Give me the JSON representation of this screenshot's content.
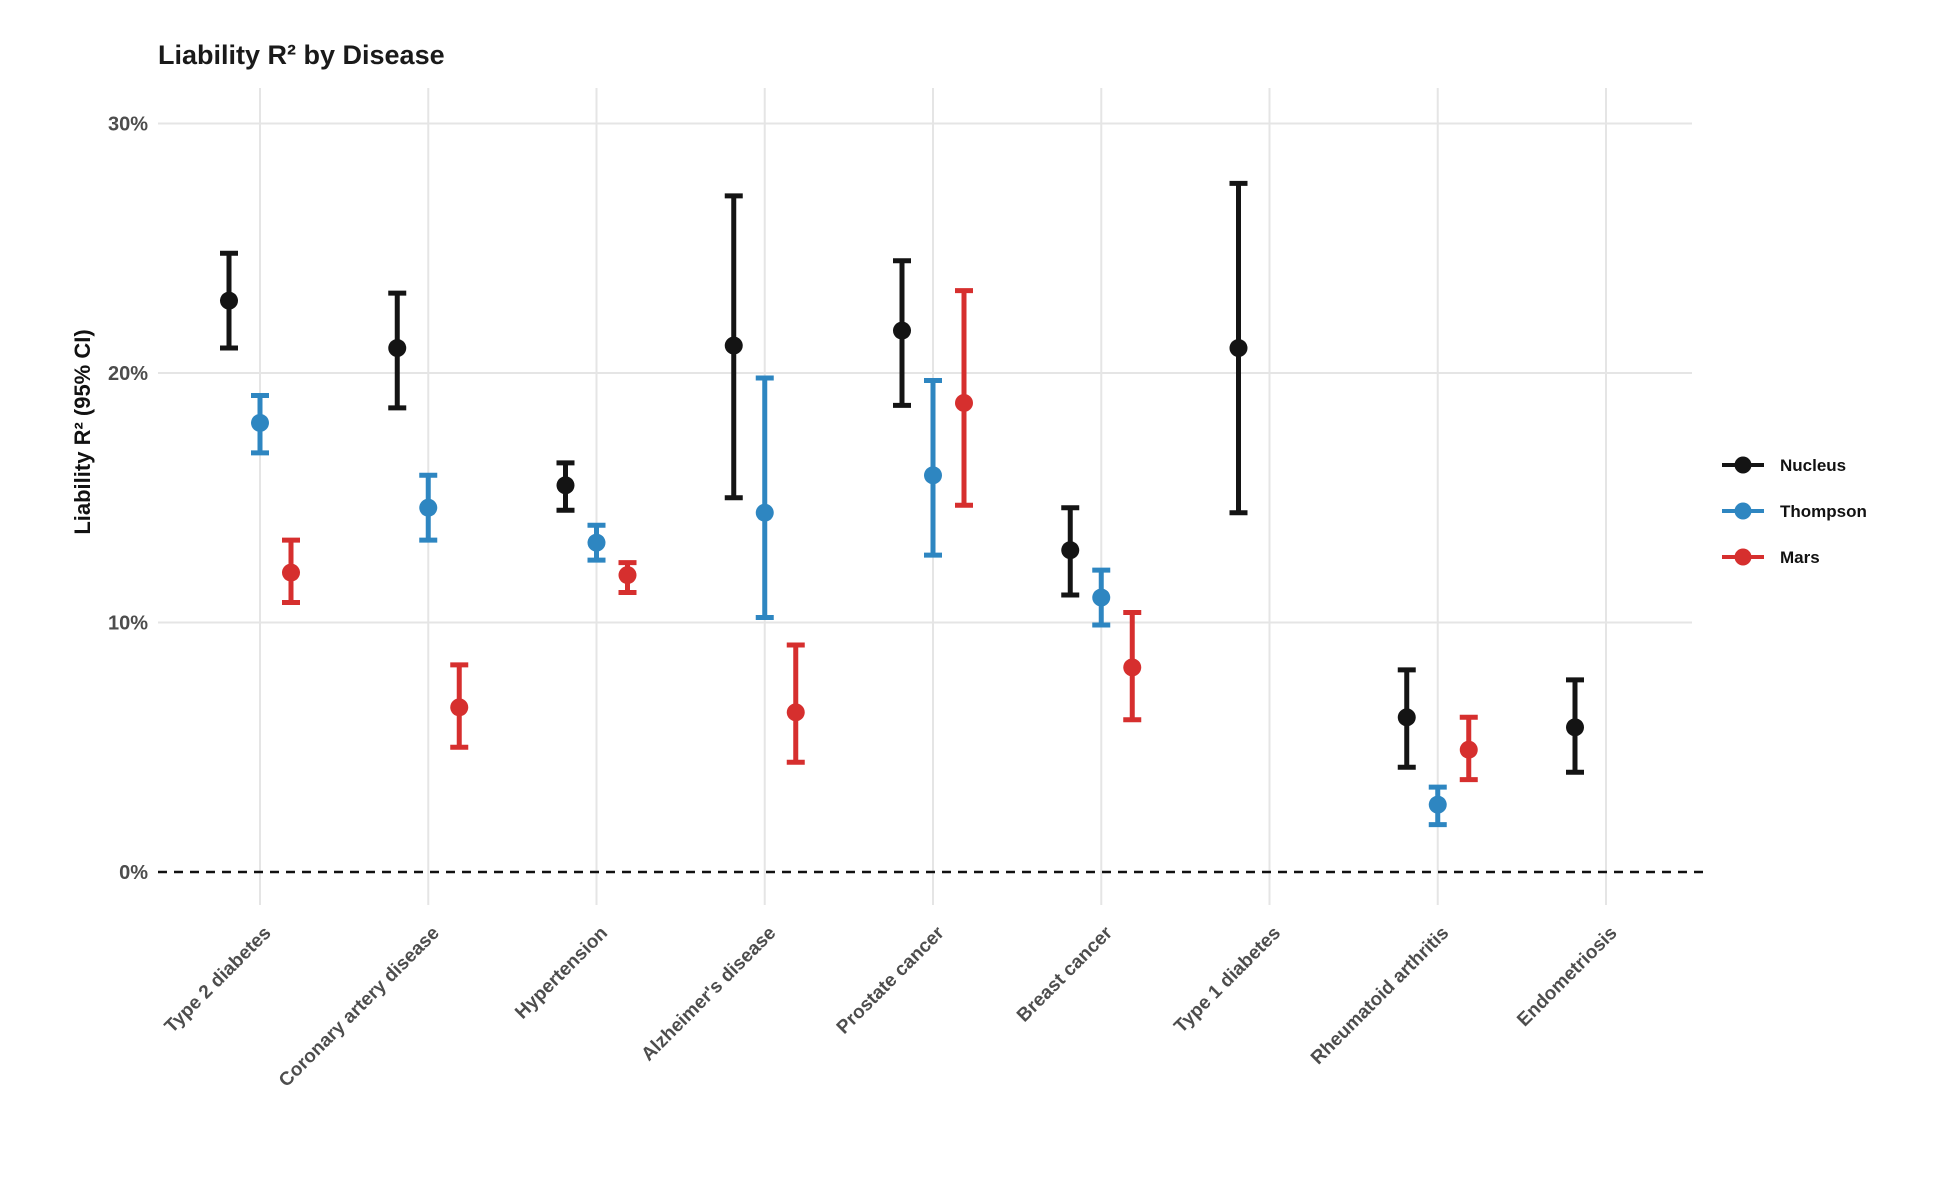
{
  "chart_data": {
    "type": "pointrange",
    "title": "Liability R² by Disease",
    "ylabel": "Liability R² (95% CI)",
    "xlabel": "",
    "grid": true,
    "legend_position": "right-center",
    "y_axis": {
      "tick_labels": [
        "30%",
        "20%",
        "10%",
        "0%"
      ],
      "tick_values": [
        30,
        20,
        10,
        0
      ],
      "range": [
        0,
        31.5
      ],
      "zero_line_style": "dashed"
    },
    "categories": [
      "Type 2 diabetes",
      "Coronary artery disease",
      "Hypertension",
      "Alzheimer's disease",
      "Prostate cancer",
      "Breast cancer",
      "Type 1 diabetes",
      "Rheumatoid arthritis",
      "Endometriosis"
    ],
    "series": [
      {
        "name": "Nucleus",
        "color": "#141414",
        "points": [
          {
            "value": 22.9,
            "lo": 21.0,
            "hi": 24.8
          },
          {
            "value": 21.0,
            "lo": 18.6,
            "hi": 23.2
          },
          {
            "value": 15.5,
            "lo": 14.5,
            "hi": 16.4
          },
          {
            "value": 21.1,
            "lo": 15.0,
            "hi": 27.1
          },
          {
            "value": 21.7,
            "lo": 18.7,
            "hi": 24.5
          },
          {
            "value": 12.9,
            "lo": 11.1,
            "hi": 14.6
          },
          {
            "value": 21.0,
            "lo": 14.4,
            "hi": 27.6
          },
          {
            "value": 6.2,
            "lo": 4.2,
            "hi": 8.1
          },
          {
            "value": 5.8,
            "lo": 4.0,
            "hi": 7.7
          }
        ]
      },
      {
        "name": "Thompson",
        "color": "#2e86c1",
        "points": [
          {
            "value": 18.0,
            "lo": 16.8,
            "hi": 19.1
          },
          {
            "value": 14.6,
            "lo": 13.3,
            "hi": 15.9
          },
          {
            "value": 13.2,
            "lo": 12.5,
            "hi": 13.9
          },
          {
            "value": 14.4,
            "lo": 10.2,
            "hi": 19.8
          },
          {
            "value": 15.9,
            "lo": 12.7,
            "hi": 19.7
          },
          {
            "value": 11.0,
            "lo": 9.9,
            "hi": 12.1
          },
          null,
          {
            "value": 2.7,
            "lo": 1.9,
            "hi": 3.4
          },
          null
        ]
      },
      {
        "name": "Mars",
        "color": "#d62f2e",
        "points": [
          {
            "value": 12.0,
            "lo": 10.8,
            "hi": 13.3
          },
          {
            "value": 6.6,
            "lo": 5.0,
            "hi": 8.3
          },
          {
            "value": 11.9,
            "lo": 11.2,
            "hi": 12.4
          },
          {
            "value": 6.4,
            "lo": 4.4,
            "hi": 9.1
          },
          {
            "value": 18.8,
            "lo": 14.7,
            "hi": 23.3
          },
          {
            "value": 8.2,
            "lo": 6.1,
            "hi": 10.4
          },
          null,
          {
            "value": 4.9,
            "lo": 3.7,
            "hi": 6.2
          },
          null
        ]
      }
    ],
    "colors": {
      "grid": "#e5e5e5",
      "zero_line": "#111111",
      "tick_label": "#4d4d4d"
    }
  }
}
